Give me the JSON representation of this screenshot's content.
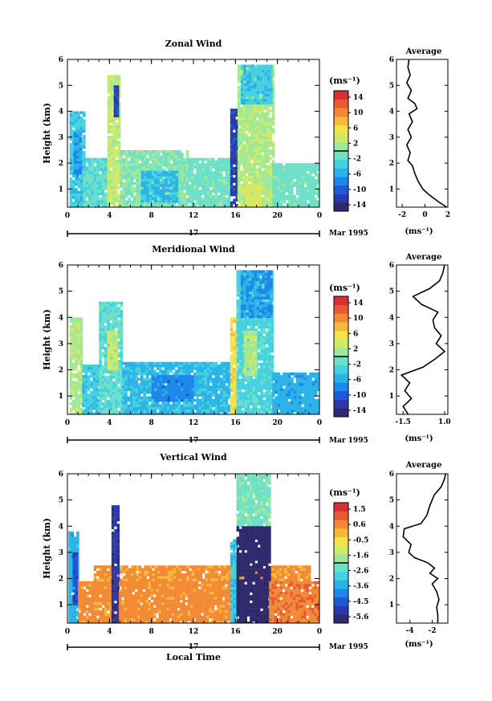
{
  "figure": {
    "xlabel": "Local Time",
    "date_label": "Mar 1995",
    "day_label": "17",
    "unit_label": "(ms⁻¹)",
    "avg_title": "Average"
  },
  "chart_data": [
    {
      "type": "heatmap",
      "title": "Zonal Wind",
      "ylabel": "Height (km)",
      "xlabel": "",
      "x_ticks": [
        "0",
        "4",
        "8",
        "12",
        "16",
        "20",
        "0"
      ],
      "y_ticks": [
        "1",
        "2",
        "3",
        "4",
        "5",
        "6"
      ],
      "xlim": [
        0,
        24
      ],
      "ylim": [
        0.3,
        6
      ],
      "colorbar": {
        "ticks": [
          "14",
          "10",
          "6",
          "2",
          "-2",
          "-6",
          "-10",
          "-14"
        ],
        "range": [
          -16,
          16
        ]
      },
      "data_blocks": [
        {
          "t0": 0.2,
          "t1": 1.5,
          "h0": 0.3,
          "h1": 4.0,
          "value": -4
        },
        {
          "t0": 0.6,
          "t1": 1.3,
          "h0": 1.5,
          "h1": 3.2,
          "value": -7
        },
        {
          "t0": 1.5,
          "t1": 3.8,
          "h0": 0.3,
          "h1": 2.2,
          "value": -2
        },
        {
          "t0": 3.8,
          "t1": 5.0,
          "h0": 0.3,
          "h1": 5.4,
          "value": 3
        },
        {
          "t0": 4.4,
          "t1": 4.9,
          "h0": 3.8,
          "h1": 5.0,
          "value": -12
        },
        {
          "t0": 5.0,
          "t1": 11.5,
          "h0": 0.3,
          "h1": 2.5,
          "value": 0
        },
        {
          "t0": 7.0,
          "t1": 10.5,
          "h0": 0.5,
          "h1": 1.7,
          "value": -5
        },
        {
          "t0": 11.5,
          "t1": 15.5,
          "h0": 0.3,
          "h1": 2.2,
          "value": -1
        },
        {
          "t0": 15.5,
          "t1": 16.2,
          "h0": 0.3,
          "h1": 4.1,
          "value": -12
        },
        {
          "t0": 16.2,
          "t1": 19.5,
          "h0": 0.3,
          "h1": 5.8,
          "value": 2
        },
        {
          "t0": 16.5,
          "t1": 19.4,
          "h0": 4.3,
          "h1": 5.8,
          "value": -4
        },
        {
          "t0": 17.0,
          "t1": 18.5,
          "h0": 0.3,
          "h1": 1.2,
          "value": 4
        },
        {
          "t0": 19.5,
          "t1": 24,
          "h0": 0.3,
          "h1": 2.0,
          "value": -1
        }
      ],
      "average_profile": {
        "xlabel": "(ms⁻¹)",
        "x_ticks": [
          "-2",
          "0",
          "2"
        ],
        "xlim": [
          -2.5,
          2
        ],
        "height": [
          0.3,
          0.5,
          0.8,
          1.0,
          1.3,
          1.6,
          1.9,
          2.1,
          2.4,
          2.7,
          3.0,
          3.3,
          3.6,
          3.9,
          4.1,
          4.3,
          4.5,
          4.8,
          5.1,
          5.4,
          5.7,
          6.0
        ],
        "value": [
          1.9,
          1.2,
          0.3,
          -0.2,
          -0.6,
          -0.9,
          -1.1,
          -1.5,
          -1.3,
          -1.6,
          -1.2,
          -1.5,
          -1.1,
          -1.4,
          -0.7,
          -0.9,
          -1.5,
          -1.2,
          -1.6,
          -1.3,
          -1.5,
          -1.4
        ]
      }
    },
    {
      "type": "heatmap",
      "title": "Meridional Wind",
      "ylabel": "Height (km)",
      "xlabel": "",
      "x_ticks": [
        "0",
        "4",
        "8",
        "12",
        "16",
        "20",
        "0"
      ],
      "y_ticks": [
        "1",
        "2",
        "3",
        "4",
        "5",
        "6"
      ],
      "xlim": [
        0,
        24
      ],
      "ylim": [
        0.3,
        6
      ],
      "colorbar": {
        "ticks": [
          "14",
          "10",
          "6",
          "2",
          "-2",
          "-6",
          "-10",
          "-14"
        ],
        "range": [
          -16,
          16
        ]
      },
      "data_blocks": [
        {
          "t0": 0.2,
          "t1": 1.4,
          "h0": 0.3,
          "h1": 4.0,
          "value": 2
        },
        {
          "t0": 1.4,
          "t1": 3.0,
          "h0": 0.3,
          "h1": 2.2,
          "value": -4
        },
        {
          "t0": 3.0,
          "t1": 5.2,
          "h0": 0.3,
          "h1": 4.6,
          "value": -2
        },
        {
          "t0": 3.8,
          "t1": 4.6,
          "h0": 2.0,
          "h1": 3.5,
          "value": 3
        },
        {
          "t0": 5.2,
          "t1": 15.5,
          "h0": 0.3,
          "h1": 2.3,
          "value": -5
        },
        {
          "t0": 8.0,
          "t1": 12.0,
          "h0": 0.8,
          "h1": 1.8,
          "value": -8
        },
        {
          "t0": 15.5,
          "t1": 16.1,
          "h0": 0.3,
          "h1": 4.0,
          "value": 6
        },
        {
          "t0": 16.1,
          "t1": 19.5,
          "h0": 0.3,
          "h1": 5.8,
          "value": -3
        },
        {
          "t0": 16.5,
          "t1": 19.3,
          "h0": 4.0,
          "h1": 5.8,
          "value": -7
        },
        {
          "t0": 16.8,
          "t1": 18.0,
          "h0": 1.8,
          "h1": 3.5,
          "value": 2
        },
        {
          "t0": 19.5,
          "t1": 24,
          "h0": 0.3,
          "h1": 1.9,
          "value": -6
        }
      ],
      "average_profile": {
        "xlabel": "(ms⁻¹)",
        "x_ticks": [
          "-1.5",
          "1.0"
        ],
        "xlim": [
          -1.9,
          1.2
        ],
        "height": [
          0.3,
          0.6,
          0.9,
          1.2,
          1.5,
          1.8,
          2.1,
          2.4,
          2.7,
          3.0,
          3.3,
          3.6,
          3.9,
          4.2,
          4.5,
          4.8,
          5.1,
          5.4,
          5.7,
          6.0
        ],
        "value": [
          -1.2,
          -1.5,
          -1.0,
          -1.4,
          -1.1,
          -1.6,
          -0.3,
          0.4,
          1.0,
          0.5,
          0.8,
          0.4,
          0.3,
          0.6,
          -0.4,
          -0.9,
          0.1,
          0.7,
          0.9,
          1.0
        ]
      }
    },
    {
      "type": "heatmap",
      "title": "Vertical Wind",
      "ylabel": "Height (km)",
      "xlabel": "Local Time",
      "x_ticks": [
        "0",
        "4",
        "8",
        "12",
        "16",
        "20",
        "0"
      ],
      "y_ticks": [
        "1",
        "2",
        "3",
        "4",
        "5",
        "6"
      ],
      "xlim": [
        0,
        24
      ],
      "ylim": [
        0.3,
        6
      ],
      "colorbar": {
        "ticks": [
          "1.5",
          "0.6",
          "-0.5",
          "-1.6",
          "-2.6",
          "-3.6",
          "-4.5",
          "-5.6"
        ],
        "range": [
          -6.1,
          2.0
        ]
      },
      "data_blocks": [
        {
          "t0": 0.1,
          "t1": 1.0,
          "h0": 0.3,
          "h1": 3.8,
          "value": -3.5
        },
        {
          "t0": 0.5,
          "t1": 0.9,
          "h0": 1.0,
          "h1": 3.0,
          "value": -4.8
        },
        {
          "t0": 1.0,
          "t1": 4.2,
          "h0": 0.3,
          "h1": 1.9,
          "value": 0.5
        },
        {
          "t0": 2.5,
          "t1": 23.0,
          "h0": 1.9,
          "h1": 2.5,
          "value": 0.4
        },
        {
          "t0": 4.2,
          "t1": 4.9,
          "h0": 0.3,
          "h1": 4.8,
          "value": -5.4
        },
        {
          "t0": 4.9,
          "t1": 15.5,
          "h0": 0.3,
          "h1": 1.9,
          "value": 0.5
        },
        {
          "t0": 15.5,
          "t1": 16.1,
          "h0": 0.3,
          "h1": 3.5,
          "value": -3.2
        },
        {
          "t0": 16.1,
          "t1": 19.2,
          "h0": 4.0,
          "h1": 6.0,
          "value": -2.2
        },
        {
          "t0": 16.1,
          "t1": 19.2,
          "h0": 0.3,
          "h1": 4.0,
          "value": -6.0
        },
        {
          "t0": 19.2,
          "t1": 24,
          "h0": 0.3,
          "h1": 1.9,
          "value": 0.7
        }
      ],
      "average_profile": {
        "xlabel": "(ms⁻¹)",
        "x_ticks": [
          "-4",
          "-2"
        ],
        "xlim": [
          -5.2,
          -0.6
        ],
        "height": [
          0.3,
          0.6,
          0.9,
          1.2,
          1.5,
          1.8,
          2.0,
          2.2,
          2.4,
          2.6,
          2.8,
          3.0,
          3.3,
          3.6,
          3.9,
          4.1,
          4.4,
          4.8,
          5.2,
          5.5,
          5.8,
          6.0
        ],
        "value": [
          -1.5,
          -1.5,
          -1.6,
          -1.4,
          -1.6,
          -2.0,
          -1.5,
          -2.2,
          -1.8,
          -2.4,
          -3.6,
          -4.1,
          -3.9,
          -4.6,
          -4.5,
          -3.0,
          -2.5,
          -2.2,
          -1.8,
          -1.2,
          -0.9,
          -0.8
        ]
      }
    }
  ]
}
